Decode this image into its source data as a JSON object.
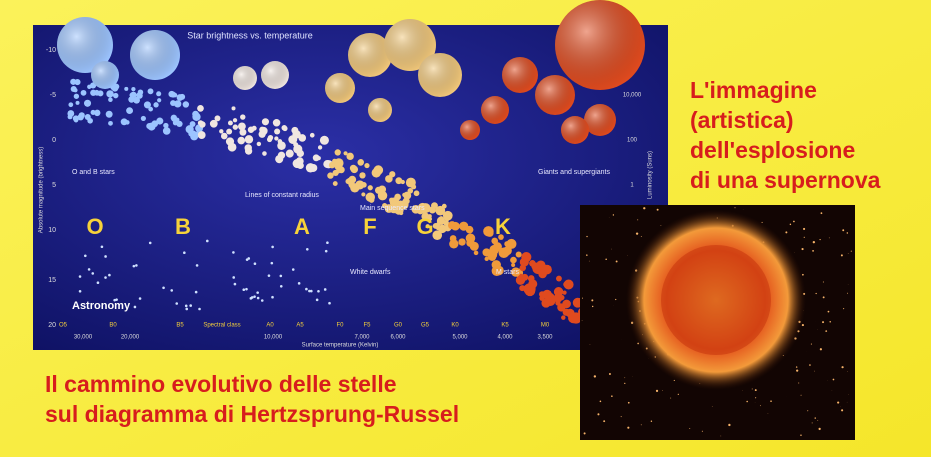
{
  "captions": {
    "right": [
      "L'immagine",
      "(artistica)",
      "dell'esplosione",
      "di una supernova"
    ],
    "bottom": [
      "Il cammino evolutivo delle stelle",
      "sul diagramma di Hertzsprung-Russel"
    ]
  },
  "diagram": {
    "title": "Star brightness vs. temperature",
    "brand": "Astronomy",
    "y_axis_label": "Absolute magnitude (brightness)",
    "y2_axis_label": "Luminosity (Suns)",
    "x_axis_label": "Surface temperature (Kelvin)",
    "spectral_axis_label": "Spectral class",
    "y_ticks": [
      "-10",
      "-5",
      "0",
      "5",
      "10",
      "15",
      "20"
    ],
    "y2_ticks": [
      "10,000",
      "100",
      "1"
    ],
    "spectral_ticks": [
      "O5",
      "B0",
      "B5",
      "A0",
      "A5",
      "F0",
      "F5",
      "G0",
      "G5",
      "K0",
      "K5",
      "M0"
    ],
    "temperature_ticks": [
      "30,000",
      "20,000",
      "10,000",
      "7,000",
      "6,000",
      "5,000",
      "4,000",
      "3,500"
    ],
    "classes": [
      "O",
      "B",
      "A",
      "F",
      "G",
      "K"
    ],
    "regions": [
      "O and B stars",
      "Lines of constant radius",
      "Main sequence stars",
      "Giants and supergiants",
      "White dwarfs",
      "M stars"
    ]
  }
}
